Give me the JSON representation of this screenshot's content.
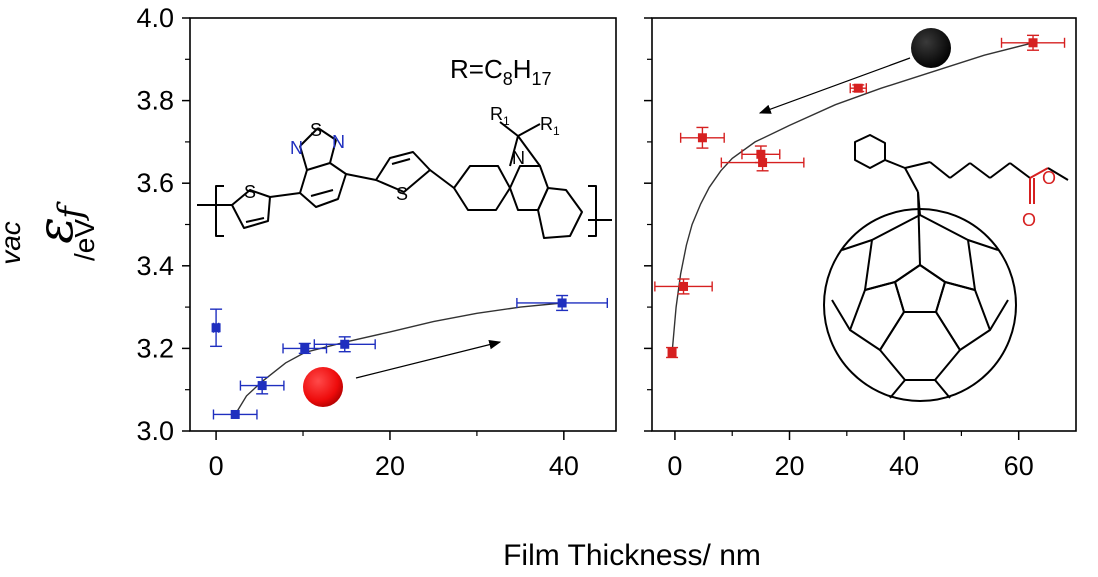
{
  "figure": {
    "xlabel": "Film Thickness/ nm",
    "ylabel_symbol": "ε",
    "ylabel_sub": "f",
    "ylabel_sup": "vac",
    "ylabel_unit": "/eV",
    "polymer_formula": {
      "prefix": "R=C",
      "sub1": "8",
      "mid": "H",
      "sub2": "17"
    },
    "atom_labels": {
      "s": "S",
      "n": "N",
      "r1": "R",
      "r1_sub": "1"
    }
  },
  "colors": {
    "left_series": "#1f2fbf",
    "right_series": "#d62020",
    "fit": "#333333",
    "red_marker": "#ee1111",
    "black_marker": "#000000",
    "oxygen": "#d62020"
  },
  "chart_data": [
    {
      "type": "scatter",
      "panel": "left",
      "xlim": [
        -3,
        46
      ],
      "ylim": [
        3.0,
        4.0
      ],
      "x_ticks": [
        "0",
        "20",
        "40"
      ],
      "y_ticks": [
        "3.0",
        "3.2",
        "3.4",
        "3.6",
        "3.8",
        "4.0"
      ],
      "series": [
        {
          "points": [
            {
              "x": 0,
              "y": 3.25,
              "xerr": 0.3,
              "yerr": 0.045
            },
            {
              "x": 2.2,
              "y": 3.04,
              "xerr": 2.5,
              "yerr": 0.0
            },
            {
              "x": 5.3,
              "y": 3.11,
              "xerr": 2.5,
              "yerr": 0.02
            },
            {
              "x": 10.2,
              "y": 3.2,
              "xerr": 2.5,
              "yerr": 0.012
            },
            {
              "x": 14.8,
              "y": 3.21,
              "xerr": 3.5,
              "yerr": 0.018
            },
            {
              "x": 39.8,
              "y": 3.31,
              "xerr": 5.2,
              "yerr": 0.018
            }
          ]
        }
      ],
      "fit": [
        [
          2.2,
          3.04
        ],
        [
          3.5,
          3.085
        ],
        [
          5.3,
          3.12
        ],
        [
          8,
          3.165
        ],
        [
          10.2,
          3.19
        ],
        [
          12,
          3.2
        ],
        [
          14.8,
          3.215
        ],
        [
          20,
          3.24
        ],
        [
          25,
          3.265
        ],
        [
          30,
          3.285
        ],
        [
          35,
          3.3
        ],
        [
          39.8,
          3.31
        ]
      ]
    },
    {
      "type": "scatter",
      "panel": "right",
      "xlim": [
        -4,
        70
      ],
      "ylim": [
        3.0,
        4.0
      ],
      "x_ticks": [
        "0",
        "20",
        "40",
        "60"
      ],
      "series": [
        {
          "points": [
            {
              "x": -0.5,
              "y": 3.19,
              "xerr": 0.6,
              "yerr": 0.012
            },
            {
              "x": 1.5,
              "y": 3.35,
              "xerr": 5.0,
              "yerr": 0.018
            },
            {
              "x": 4.8,
              "y": 3.71,
              "xerr": 3.8,
              "yerr": 0.025
            },
            {
              "x": 15,
              "y": 3.67,
              "xerr": 3.3,
              "yerr": 0.02
            },
            {
              "x": 15.3,
              "y": 3.65,
              "xerr": 7.2,
              "yerr": 0.02
            },
            {
              "x": 32,
              "y": 3.83,
              "xerr": 1.4,
              "yerr": 0.008
            },
            {
              "x": 62.5,
              "y": 3.94,
              "xerr": 5.5,
              "yerr": 0.018
            }
          ]
        }
      ],
      "fit": [
        [
          -0.5,
          3.19
        ],
        [
          0.2,
          3.3
        ],
        [
          1.0,
          3.38
        ],
        [
          2,
          3.45
        ],
        [
          3,
          3.5
        ],
        [
          4.5,
          3.55
        ],
        [
          6,
          3.59
        ],
        [
          8,
          3.63
        ],
        [
          10,
          3.66
        ],
        [
          14,
          3.7
        ],
        [
          20,
          3.74
        ],
        [
          28,
          3.79
        ],
        [
          36,
          3.83
        ],
        [
          45,
          3.87
        ],
        [
          54,
          3.91
        ],
        [
          62.5,
          3.94
        ]
      ]
    }
  ]
}
